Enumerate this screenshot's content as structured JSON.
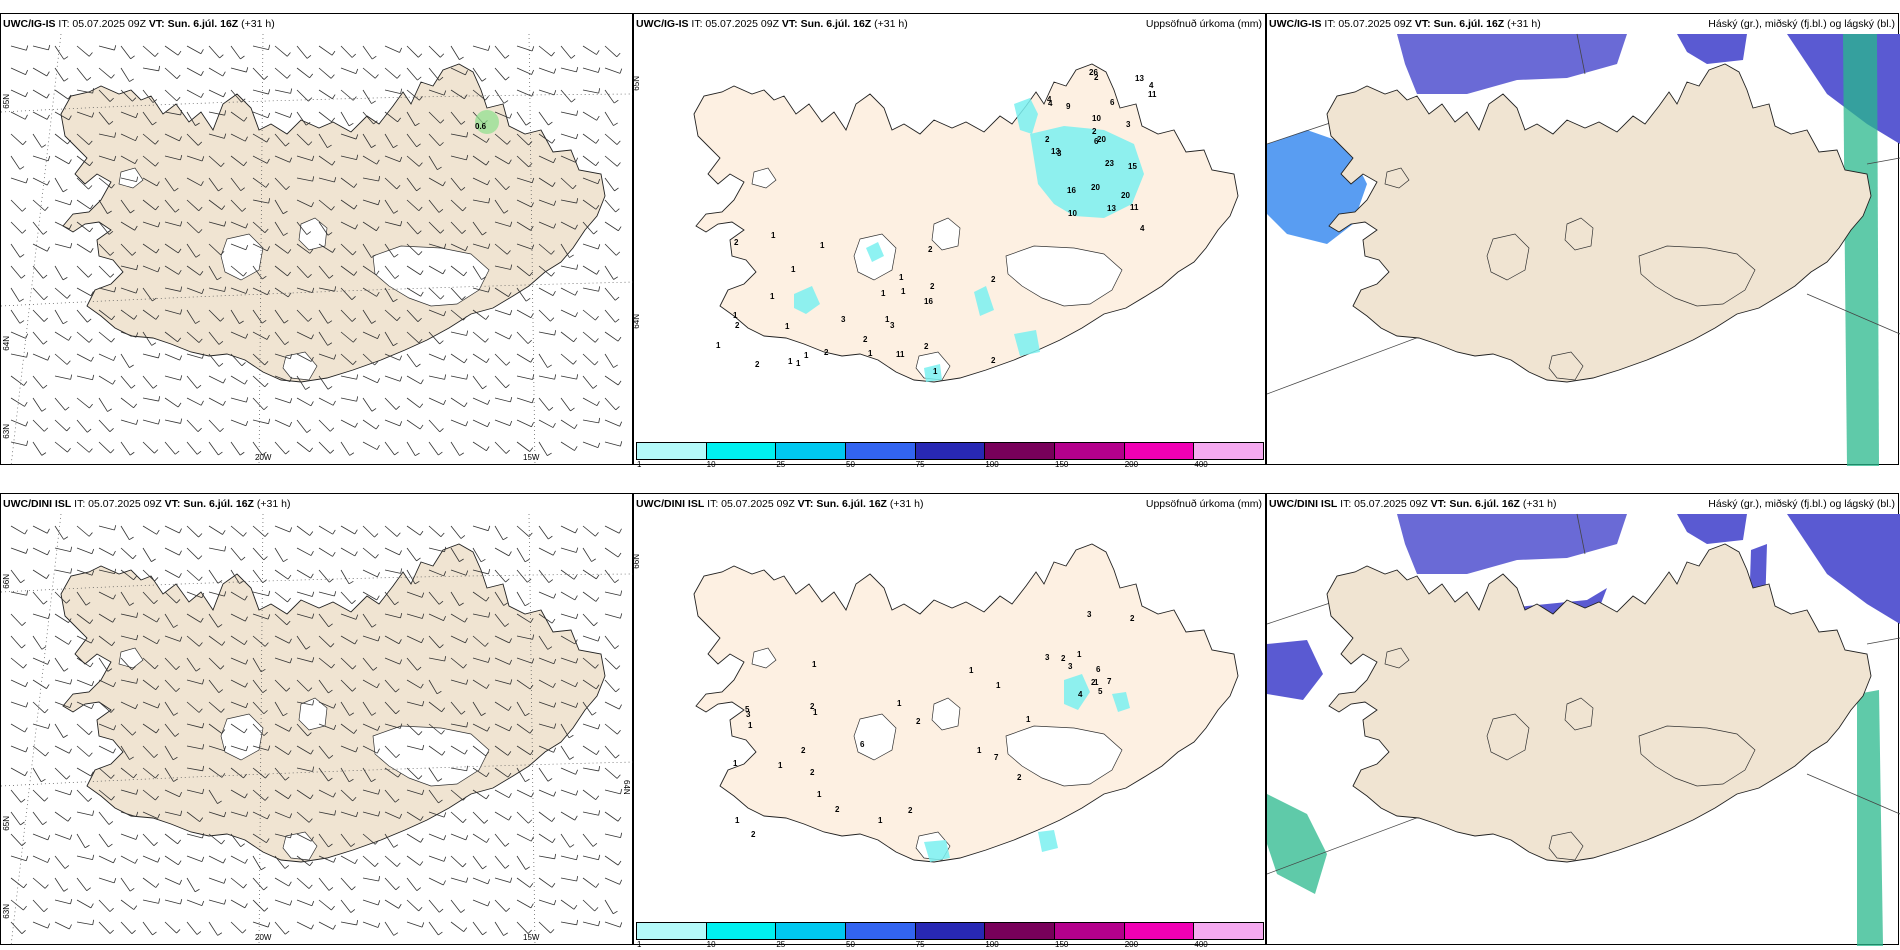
{
  "panels": [
    {
      "model": "UWC/IG-IS",
      "it": "IT: 05.07.2025 09Z",
      "vt_label": "VT:",
      "vt": "Sun. 6.júl. 16Z",
      "lead": "(+31 h)",
      "right_title": "",
      "kind": "wind",
      "lat_left": [
        "65N",
        "64N",
        "63N"
      ],
      "lon": [
        "20W",
        "15W"
      ],
      "lat_right": [],
      "point_label": "0.6"
    },
    {
      "model": "UWC/IG-IS",
      "it": "IT: 05.07.2025 09Z",
      "vt_label": "VT:",
      "vt": "Sun. 6.júl. 16Z",
      "lead": "(+31 h)",
      "right_title": "Uppsöfnuð úrkoma (mm)",
      "kind": "precip",
      "lat_right": [
        "65N",
        "64N"
      ],
      "labels": [
        "2",
        "2",
        "3",
        "4",
        "4",
        "4",
        "3",
        "6",
        "10",
        "13",
        "20",
        "15",
        "26",
        "4",
        "9",
        "16",
        "13",
        "13",
        "23",
        "20",
        "20",
        "11",
        "11",
        "2",
        "10",
        "6",
        "1",
        "1",
        "1",
        "1",
        "1",
        "1",
        "1",
        "2",
        "1",
        "2",
        "2",
        "2",
        "1",
        "1",
        "2",
        "1",
        "2",
        "2",
        "3",
        "1",
        "2",
        "1",
        "2",
        "1",
        "1",
        "2",
        "3",
        "16",
        "11",
        "1"
      ]
    },
    {
      "model": "UWC/IG-IS",
      "it": "IT: 05.07.2025 09Z",
      "vt_label": "VT:",
      "vt": "Sun. 6.júl. 16Z",
      "lead": "(+31 h)",
      "right_title": "Háský (gr.), miðský (fj.bl.) og lágský (bl.)",
      "kind": "cloud"
    },
    {
      "model": "UWC/DINI ISL",
      "it": "IT: 05.07.2025 09Z",
      "vt_label": "VT:",
      "vt": "Sun. 6.júl. 16Z",
      "lead": "(+31 h)",
      "right_title": "",
      "kind": "wind",
      "lat_left": [
        "66N",
        "65N",
        "63N"
      ],
      "lon": [
        "20W",
        "15W"
      ],
      "lat_right": [
        "64N"
      ],
      "point_label": ""
    },
    {
      "model": "UWC/DINI ISL",
      "it": "IT: 05.07.2025 09Z",
      "vt_label": "VT:",
      "vt": "Sun. 6.júl. 16Z",
      "lead": "(+31 h)",
      "right_title": "Uppsöfnuð úrkoma (mm)",
      "kind": "precip",
      "lat_right": [
        "66N"
      ],
      "labels": [
        "3",
        "1",
        "5",
        "2",
        "2",
        "6",
        "4",
        "2",
        "7",
        "1",
        "3",
        "3",
        "1",
        "2",
        "1",
        "1",
        "1",
        "1",
        "2",
        "2",
        "1",
        "2",
        "2",
        "2",
        "1",
        "2",
        "1",
        "1",
        "1",
        "1",
        "6",
        "7",
        "5",
        "2",
        "1",
        "3",
        "1"
      ]
    },
    {
      "model": "UWC/DINI ISL",
      "it": "IT: 05.07.2025 09Z",
      "vt_label": "VT:",
      "vt": "Sun. 6.júl. 16Z",
      "lead": "(+31 h)",
      "right_title": "Háský (gr.), miðský (fj.bl.) og lágský (bl.)",
      "kind": "cloud"
    }
  ],
  "colorbar": {
    "colors": [
      "#b4fafa",
      "#00f0f0",
      "#00c8f0",
      "#3264f0",
      "#2828b4",
      "#78005a",
      "#b4008c",
      "#f000b4",
      "#f5aaf0"
    ],
    "ticks": [
      "1",
      "10",
      "25",
      "50",
      "75",
      "100",
      "150",
      "200",
      "400"
    ]
  },
  "colors": {
    "land": "#f0e4d2",
    "land_precip": "#fdf0e2",
    "ice": "#ffffff",
    "precip": "#7af0f0",
    "high_cloud": "#2ab88c",
    "mid_cloud": "#5a5ad2",
    "low_cloud": "#5a5ad2",
    "low_cloud_edge": "#3c8cf0",
    "dense": "#a01e3c"
  }
}
